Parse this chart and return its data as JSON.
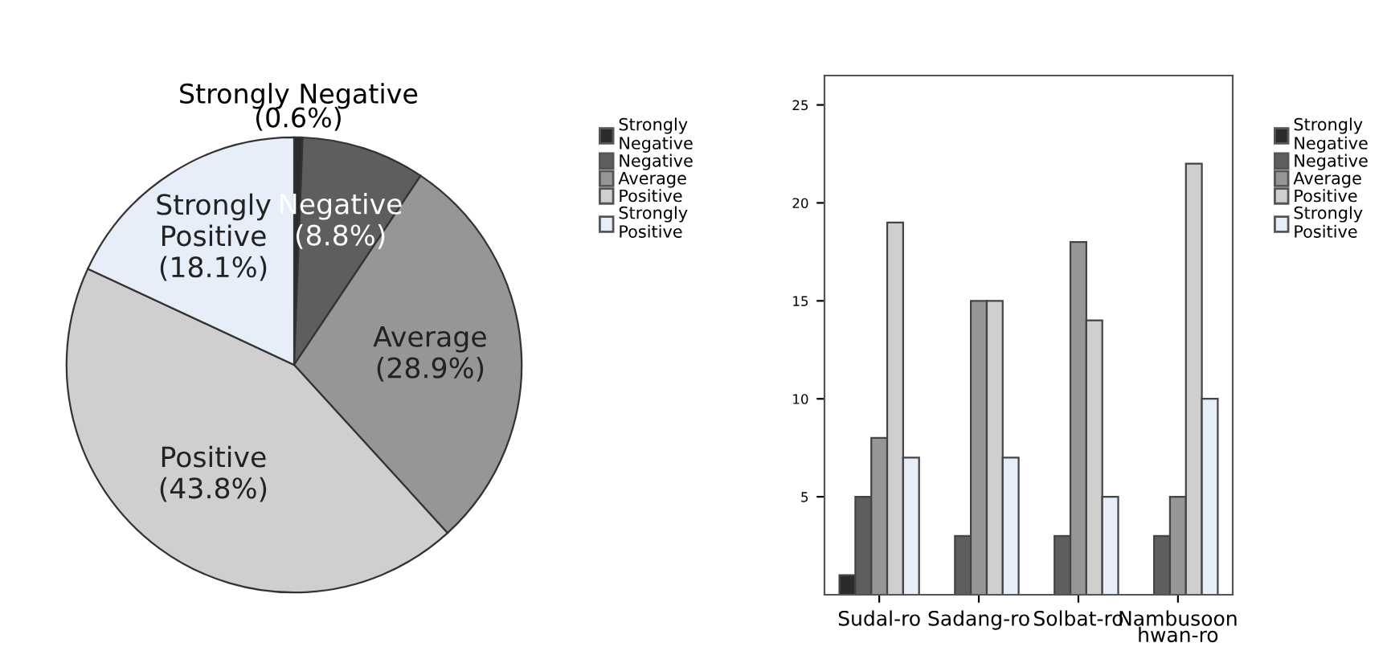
{
  "chart_data": [
    {
      "type": "pie",
      "categories": [
        "Strongly Negative",
        "Negative",
        "Average",
        "Positive",
        "Strongly Positive"
      ],
      "values": [
        0.6,
        8.8,
        28.9,
        43.8,
        18.1
      ],
      "value_labels": [
        "(0.6%)",
        "(8.8%)",
        "(28.9%)",
        "(43.8%)",
        "(18.1%)"
      ],
      "colors": [
        "#2b2b2b",
        "#5e5e5e",
        "#969696",
        "#cfcfcf",
        "#e6eefa"
      ],
      "legend": "right"
    },
    {
      "type": "bar",
      "categories": [
        "Sudal-ro",
        "Sadang-ro",
        "Solbat-ro",
        "Nambusoon\nhwan-ro"
      ],
      "series": [
        {
          "name": "Strongly Negative",
          "color": "#2b2b2b",
          "values": [
            1,
            null,
            null,
            null
          ]
        },
        {
          "name": "Negative",
          "color": "#5e5e5e",
          "values": [
            5,
            3,
            3,
            3
          ]
        },
        {
          "name": "Average",
          "color": "#969696",
          "values": [
            8,
            15,
            18,
            5
          ]
        },
        {
          "name": "Positive",
          "color": "#cfcfcf",
          "values": [
            19,
            15,
            14,
            22
          ]
        },
        {
          "name": "Strongly Positive",
          "color": "#e6eefa",
          "values": [
            7,
            7,
            5,
            10
          ]
        }
      ],
      "ylim": [
        0,
        26.5
      ],
      "yticks": [
        5,
        10,
        15,
        20,
        25
      ],
      "grid": false,
      "legend": "right"
    }
  ]
}
